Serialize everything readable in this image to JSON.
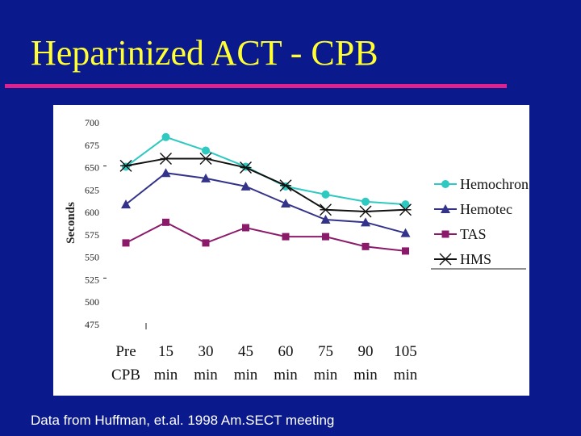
{
  "slide": {
    "title": "Heparinized ACT - CPB",
    "caption": "Data from Huffman, et.al. 1998 Am.SECT meeting"
  },
  "chart_data": {
    "type": "line",
    "title": "",
    "ylabel": "Seconds",
    "xlabel": "",
    "ylim": [
      475,
      700
    ],
    "yticks": [
      700,
      675,
      650,
      625,
      600,
      575,
      550,
      525,
      500,
      475
    ],
    "categories": [
      [
        "Pre",
        "CPB"
      ],
      [
        "15",
        "min"
      ],
      [
        "30",
        "min"
      ],
      [
        "45",
        "min"
      ],
      [
        "60",
        "min"
      ],
      [
        "75",
        "min"
      ],
      [
        "90",
        "min"
      ],
      [
        "105",
        "min"
      ]
    ],
    "legend_position": "right",
    "series": [
      {
        "name": "Hemochron",
        "marker": "circle",
        "color": "#2ec9c0",
        "values": [
          651,
          684,
          669,
          651,
          629,
          620,
          612,
          609
        ]
      },
      {
        "name": "Hemotec",
        "marker": "triangle",
        "color": "#33338a",
        "values": [
          609,
          644,
          638,
          629,
          610,
          592,
          589,
          577
        ]
      },
      {
        "name": "TAS",
        "marker": "square",
        "color": "#8b1a6b",
        "values": [
          566,
          589,
          566,
          583,
          573,
          573,
          562,
          557
        ]
      },
      {
        "name": "HMS",
        "marker": "star",
        "color": "#111111",
        "values": [
          652,
          660,
          660,
          650,
          630,
          603,
          601,
          603
        ]
      }
    ]
  }
}
